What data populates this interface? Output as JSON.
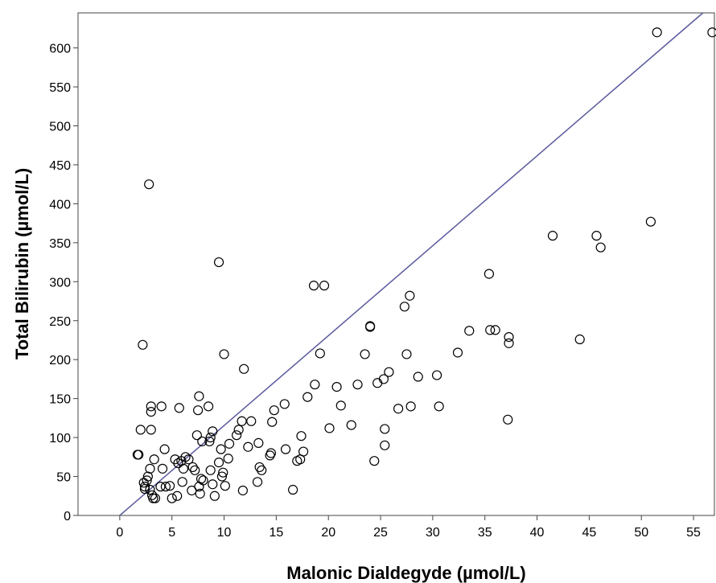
{
  "chart_data": {
    "type": "scatter",
    "title": "",
    "xlabel": "Malonic Dialdegyde (µmol/L)",
    "ylabel": "Total Bilirubin (µmol/L)",
    "xlim": [
      -4,
      57
    ],
    "ylim": [
      0,
      645
    ],
    "xticks": [
      0,
      5,
      10,
      15,
      20,
      25,
      30,
      35,
      40,
      45,
      50,
      55
    ],
    "yticks": [
      0,
      50,
      100,
      150,
      200,
      250,
      300,
      350,
      400,
      450,
      500,
      550,
      600
    ],
    "grid": false,
    "legend": "none",
    "marker": "open-circle",
    "marker_color": "#000000",
    "fit_line": {
      "x": [
        0,
        55.9
      ],
      "y": [
        0,
        645
      ],
      "color": "#5a5a9e"
    },
    "points": [
      [
        1.7,
        78
      ],
      [
        1.8,
        78
      ],
      [
        2.0,
        110
      ],
      [
        2.2,
        219
      ],
      [
        2.3,
        42
      ],
      [
        2.4,
        37
      ],
      [
        2.6,
        45
      ],
      [
        2.8,
        425
      ],
      [
        2.9,
        60
      ],
      [
        2.7,
        50
      ],
      [
        2.9,
        33
      ],
      [
        3.0,
        110
      ],
      [
        3.0,
        133
      ],
      [
        3.0,
        140
      ],
      [
        3.1,
        26
      ],
      [
        3.2,
        22
      ],
      [
        3.3,
        72
      ],
      [
        3.4,
        22
      ],
      [
        2.4,
        34
      ],
      [
        3.9,
        37
      ],
      [
        4.0,
        140
      ],
      [
        4.1,
        60
      ],
      [
        4.3,
        85
      ],
      [
        4.4,
        37
      ],
      [
        4.8,
        38
      ],
      [
        5.0,
        22
      ],
      [
        5.3,
        72
      ],
      [
        5.5,
        25
      ],
      [
        5.6,
        67
      ],
      [
        5.7,
        138
      ],
      [
        5.9,
        70
      ],
      [
        6.0,
        43
      ],
      [
        6.1,
        60
      ],
      [
        6.3,
        75
      ],
      [
        6.6,
        72
      ],
      [
        6.9,
        32
      ],
      [
        7.0,
        62
      ],
      [
        7.2,
        58
      ],
      [
        7.4,
        103
      ],
      [
        7.5,
        135
      ],
      [
        7.6,
        153
      ],
      [
        7.6,
        37
      ],
      [
        7.7,
        28
      ],
      [
        7.8,
        47
      ],
      [
        7.9,
        95
      ],
      [
        8.0,
        45
      ],
      [
        8.5,
        140
      ],
      [
        8.6,
        95
      ],
      [
        8.7,
        100
      ],
      [
        8.7,
        58
      ],
      [
        8.9,
        108
      ],
      [
        8.9,
        40
      ],
      [
        9.1,
        25
      ],
      [
        9.5,
        325
      ],
      [
        9.5,
        68
      ],
      [
        9.7,
        85
      ],
      [
        9.8,
        50
      ],
      [
        9.9,
        55
      ],
      [
        10.0,
        207
      ],
      [
        10.1,
        38
      ],
      [
        10.4,
        73
      ],
      [
        10.5,
        92
      ],
      [
        11.2,
        103
      ],
      [
        11.4,
        110
      ],
      [
        11.7,
        121
      ],
      [
        11.8,
        32
      ],
      [
        11.9,
        188
      ],
      [
        12.3,
        88
      ],
      [
        12.6,
        121
      ],
      [
        13.2,
        43
      ],
      [
        13.3,
        93
      ],
      [
        13.4,
        62
      ],
      [
        13.6,
        58
      ],
      [
        14.4,
        77
      ],
      [
        14.5,
        80
      ],
      [
        14.6,
        120
      ],
      [
        14.8,
        135
      ],
      [
        15.8,
        143
      ],
      [
        15.9,
        85
      ],
      [
        16.6,
        33
      ],
      [
        17.0,
        70
      ],
      [
        17.3,
        72
      ],
      [
        17.4,
        102
      ],
      [
        17.6,
        82
      ],
      [
        18.0,
        152
      ],
      [
        18.6,
        295
      ],
      [
        18.7,
        168
      ],
      [
        19.2,
        208
      ],
      [
        19.6,
        295
      ],
      [
        20.1,
        112
      ],
      [
        20.8,
        165
      ],
      [
        21.2,
        141
      ],
      [
        22.2,
        116
      ],
      [
        22.8,
        168
      ],
      [
        23.5,
        207
      ],
      [
        24.0,
        242
      ],
      [
        24.0,
        243
      ],
      [
        24.4,
        70
      ],
      [
        24.7,
        170
      ],
      [
        25.3,
        175
      ],
      [
        25.4,
        90
      ],
      [
        25.4,
        111
      ],
      [
        25.8,
        184
      ],
      [
        26.7,
        137
      ],
      [
        27.3,
        268
      ],
      [
        27.5,
        207
      ],
      [
        27.8,
        282
      ],
      [
        27.9,
        140
      ],
      [
        28.6,
        178
      ],
      [
        30.4,
        180
      ],
      [
        30.6,
        140
      ],
      [
        32.4,
        209
      ],
      [
        33.5,
        237
      ],
      [
        35.4,
        310
      ],
      [
        35.5,
        238
      ],
      [
        36.0,
        238
      ],
      [
        37.2,
        123
      ],
      [
        37.3,
        221
      ],
      [
        37.3,
        229
      ],
      [
        41.5,
        359
      ],
      [
        44.1,
        226
      ],
      [
        45.7,
        359
      ],
      [
        46.1,
        344
      ],
      [
        50.9,
        377
      ],
      [
        51.5,
        620
      ],
      [
        56.8,
        620
      ]
    ]
  }
}
